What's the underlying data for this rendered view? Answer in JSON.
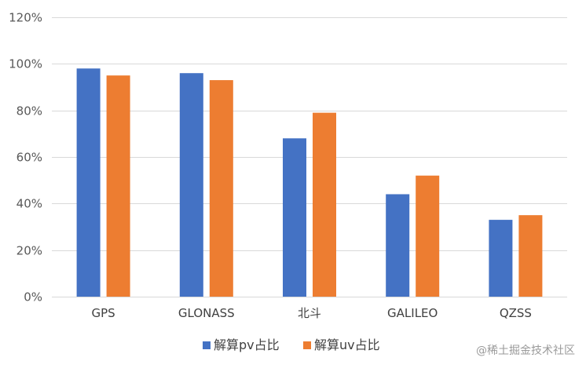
{
  "chart_data": {
    "type": "bar",
    "categories": [
      "GPS",
      "GLONASS",
      "北斗",
      "GALILEO",
      "QZSS"
    ],
    "series": [
      {
        "name": "解算pv占比",
        "values": [
          98,
          96,
          68,
          44,
          33
        ],
        "color": "#4472C4"
      },
      {
        "name": "解算uv占比",
        "values": [
          95,
          93,
          79,
          52,
          35
        ],
        "color": "#ED7D31"
      }
    ],
    "y_ticks": [
      "0%",
      "20%",
      "40%",
      "60%",
      "80%",
      "100%",
      "120%"
    ],
    "ylim": [
      0,
      120
    ],
    "y_unit": "%",
    "grid": true,
    "gridline_color": "#d9d9d9",
    "legend_position": "bottom-center",
    "title": "",
    "xlabel": "",
    "ylabel": ""
  },
  "watermark": "@稀土掘金技术社区"
}
